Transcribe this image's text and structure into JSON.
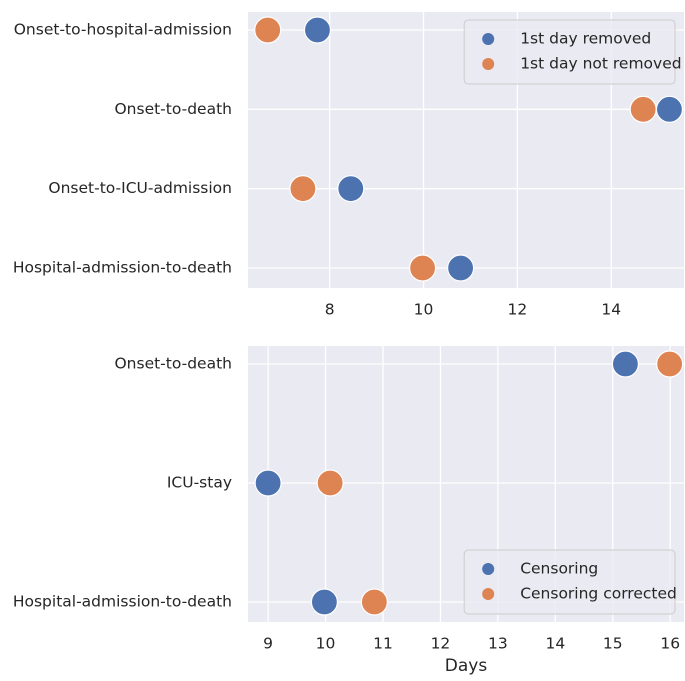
{
  "chart_data": [
    {
      "type": "scatter",
      "categories": [
        "Onset-to-hospital-admission",
        "Onset-to-death",
        "Onset-to-ICU-admission",
        "Hospital-admission-to-death"
      ],
      "series": [
        {
          "name": "1st day removed",
          "color": "#4c72b0",
          "values": [
            7.74,
            15.24,
            8.45,
            10.79
          ]
        },
        {
          "name": "1st day not removed",
          "color": "#dd8452",
          "values": [
            6.68,
            14.68,
            7.43,
            9.98
          ]
        }
      ],
      "xlim": [
        6.26,
        15.55
      ],
      "xticks": [
        8,
        10,
        12,
        14
      ],
      "grid": true,
      "legend": "upper right"
    },
    {
      "type": "scatter",
      "xlabel": "Days",
      "categories": [
        "Onset-to-death",
        "ICU-stay",
        "Hospital-admission-to-death"
      ],
      "series": [
        {
          "name": "Censoring",
          "color": "#4c72b0",
          "values": [
            15.22,
            9.0,
            9.98
          ]
        },
        {
          "name": "Censoring corrected",
          "color": "#dd8452",
          "values": [
            15.99,
            10.08,
            10.85
          ]
        }
      ],
      "xlim": [
        8.65,
        16.24
      ],
      "xticks": [
        9,
        10,
        11,
        12,
        13,
        14,
        15,
        16
      ],
      "grid": true,
      "legend": "lower right"
    }
  ]
}
